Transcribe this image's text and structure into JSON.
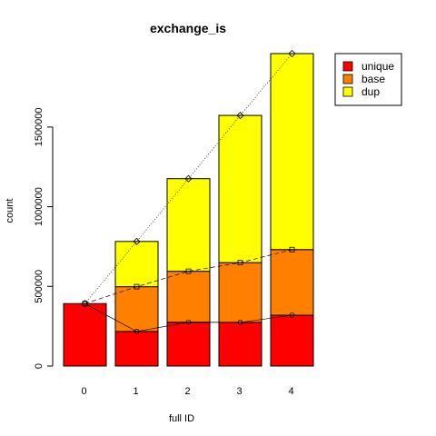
{
  "chart_data": {
    "type": "bar",
    "stacked": true,
    "title": "exchange_is",
    "xlabel": "full ID",
    "ylabel": "count",
    "categories": [
      "0",
      "1",
      "2",
      "3",
      "4"
    ],
    "series": [
      {
        "name": "unique",
        "color": "#FF0000",
        "values": [
          392000,
          217000,
          275000,
          274000,
          319000
        ]
      },
      {
        "name": "base",
        "color": "#FF8000",
        "values": [
          0,
          281000,
          320000,
          375000,
          412000
        ]
      },
      {
        "name": "dup",
        "color": "#FFFF00",
        "values": [
          0,
          284000,
          581000,
          924000,
          1230000
        ]
      }
    ],
    "lines": [
      {
        "series": "unique",
        "marker": "circle",
        "style": "solid",
        "values": [
          392000,
          217000,
          275000,
          274000,
          319000
        ]
      },
      {
        "series": "base",
        "marker": "square",
        "style": "dashed",
        "values": [
          392000,
          498000,
          595000,
          649000,
          731000
        ]
      },
      {
        "series": "dup",
        "marker": "diamond",
        "style": "dotted",
        "values": [
          392000,
          782000,
          1176000,
          1573000,
          1961000
        ]
      }
    ],
    "yticks": [
      0,
      500000,
      1000000,
      1500000
    ],
    "ytick_labels": [
      "0",
      "500000",
      "1000000",
      "1500000"
    ],
    "ylim": [
      0,
      1961000
    ],
    "legend_position": "top-right",
    "grid": false
  }
}
